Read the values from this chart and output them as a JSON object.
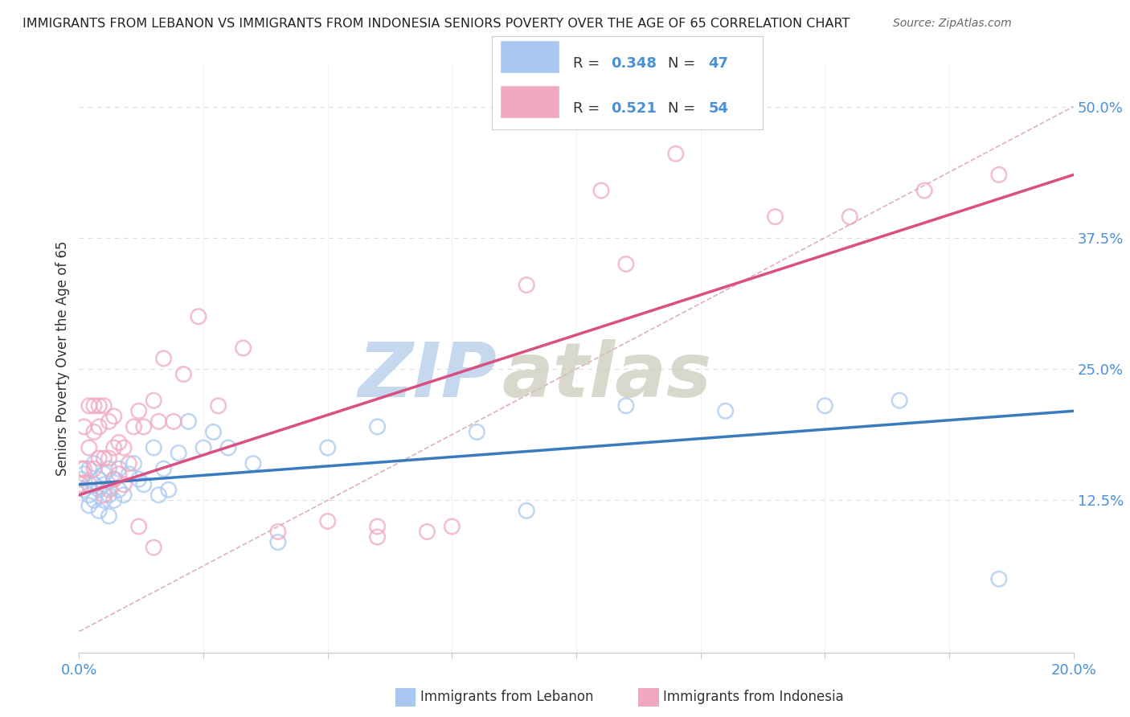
{
  "title": "IMMIGRANTS FROM LEBANON VS IMMIGRANTS FROM INDONESIA SENIORS POVERTY OVER THE AGE OF 65 CORRELATION CHART",
  "source": "Source: ZipAtlas.com",
  "ylabel": "Seniors Poverty Over the Age of 65",
  "xlim": [
    0,
    0.2
  ],
  "ylim": [
    -0.02,
    0.54
  ],
  "yticks_right": [
    0.125,
    0.25,
    0.375,
    0.5
  ],
  "ytick_right_labels": [
    "12.5%",
    "25.0%",
    "37.5%",
    "50.0%"
  ],
  "lebanon_color": "#a8c8f0",
  "indonesia_color": "#f0a8c0",
  "lebanon_line_color": "#3a7abf",
  "indonesia_line_color": "#d94f80",
  "ref_line_color": "#e0b0c0",
  "legend_R_lebanon": "0.348",
  "legend_N_lebanon": "47",
  "legend_R_indonesia": "0.521",
  "legend_N_indonesia": "54",
  "lebanon_scatter_x": [
    0.0005,
    0.001,
    0.001,
    0.002,
    0.002,
    0.002,
    0.003,
    0.003,
    0.003,
    0.004,
    0.004,
    0.004,
    0.005,
    0.005,
    0.005,
    0.006,
    0.006,
    0.006,
    0.007,
    0.007,
    0.008,
    0.008,
    0.009,
    0.01,
    0.011,
    0.012,
    0.013,
    0.015,
    0.016,
    0.017,
    0.018,
    0.02,
    0.022,
    0.025,
    0.027,
    0.03,
    0.035,
    0.04,
    0.05,
    0.06,
    0.08,
    0.09,
    0.11,
    0.13,
    0.15,
    0.165,
    0.185
  ],
  "lebanon_scatter_y": [
    0.145,
    0.135,
    0.15,
    0.13,
    0.12,
    0.155,
    0.14,
    0.125,
    0.16,
    0.135,
    0.145,
    0.115,
    0.15,
    0.125,
    0.14,
    0.13,
    0.155,
    0.11,
    0.145,
    0.125,
    0.155,
    0.135,
    0.13,
    0.15,
    0.16,
    0.145,
    0.14,
    0.175,
    0.13,
    0.155,
    0.135,
    0.17,
    0.2,
    0.175,
    0.19,
    0.175,
    0.16,
    0.085,
    0.175,
    0.195,
    0.19,
    0.115,
    0.215,
    0.21,
    0.215,
    0.22,
    0.05
  ],
  "indonesia_scatter_x": [
    0.0003,
    0.0005,
    0.001,
    0.001,
    0.002,
    0.002,
    0.002,
    0.003,
    0.003,
    0.003,
    0.004,
    0.004,
    0.004,
    0.005,
    0.005,
    0.005,
    0.006,
    0.006,
    0.006,
    0.007,
    0.007,
    0.007,
    0.008,
    0.008,
    0.009,
    0.009,
    0.01,
    0.011,
    0.012,
    0.013,
    0.015,
    0.016,
    0.017,
    0.019,
    0.021,
    0.024,
    0.028,
    0.033,
    0.04,
    0.05,
    0.06,
    0.07,
    0.09,
    0.105,
    0.12,
    0.14,
    0.155,
    0.17,
    0.185,
    0.11,
    0.06,
    0.075,
    0.012,
    0.015
  ],
  "indonesia_scatter_y": [
    0.14,
    0.155,
    0.155,
    0.195,
    0.14,
    0.175,
    0.215,
    0.155,
    0.19,
    0.215,
    0.165,
    0.195,
    0.215,
    0.13,
    0.165,
    0.215,
    0.135,
    0.165,
    0.2,
    0.145,
    0.175,
    0.205,
    0.15,
    0.18,
    0.14,
    0.175,
    0.16,
    0.195,
    0.21,
    0.195,
    0.22,
    0.2,
    0.26,
    0.2,
    0.245,
    0.3,
    0.215,
    0.27,
    0.095,
    0.105,
    0.09,
    0.095,
    0.33,
    0.42,
    0.455,
    0.395,
    0.395,
    0.42,
    0.435,
    0.35,
    0.1,
    0.1,
    0.1,
    0.08
  ],
  "lebanon_trend_x": [
    0.0,
    0.2
  ],
  "lebanon_trend_y": [
    0.14,
    0.21
  ],
  "indonesia_trend_x": [
    0.0,
    0.2
  ],
  "indonesia_trend_y": [
    0.13,
    0.435
  ],
  "ref_line_x": [
    0.0,
    0.2
  ],
  "ref_line_y": [
    0.0,
    0.5
  ],
  "background_color": "#ffffff",
  "grid_color": "#dddddd"
}
